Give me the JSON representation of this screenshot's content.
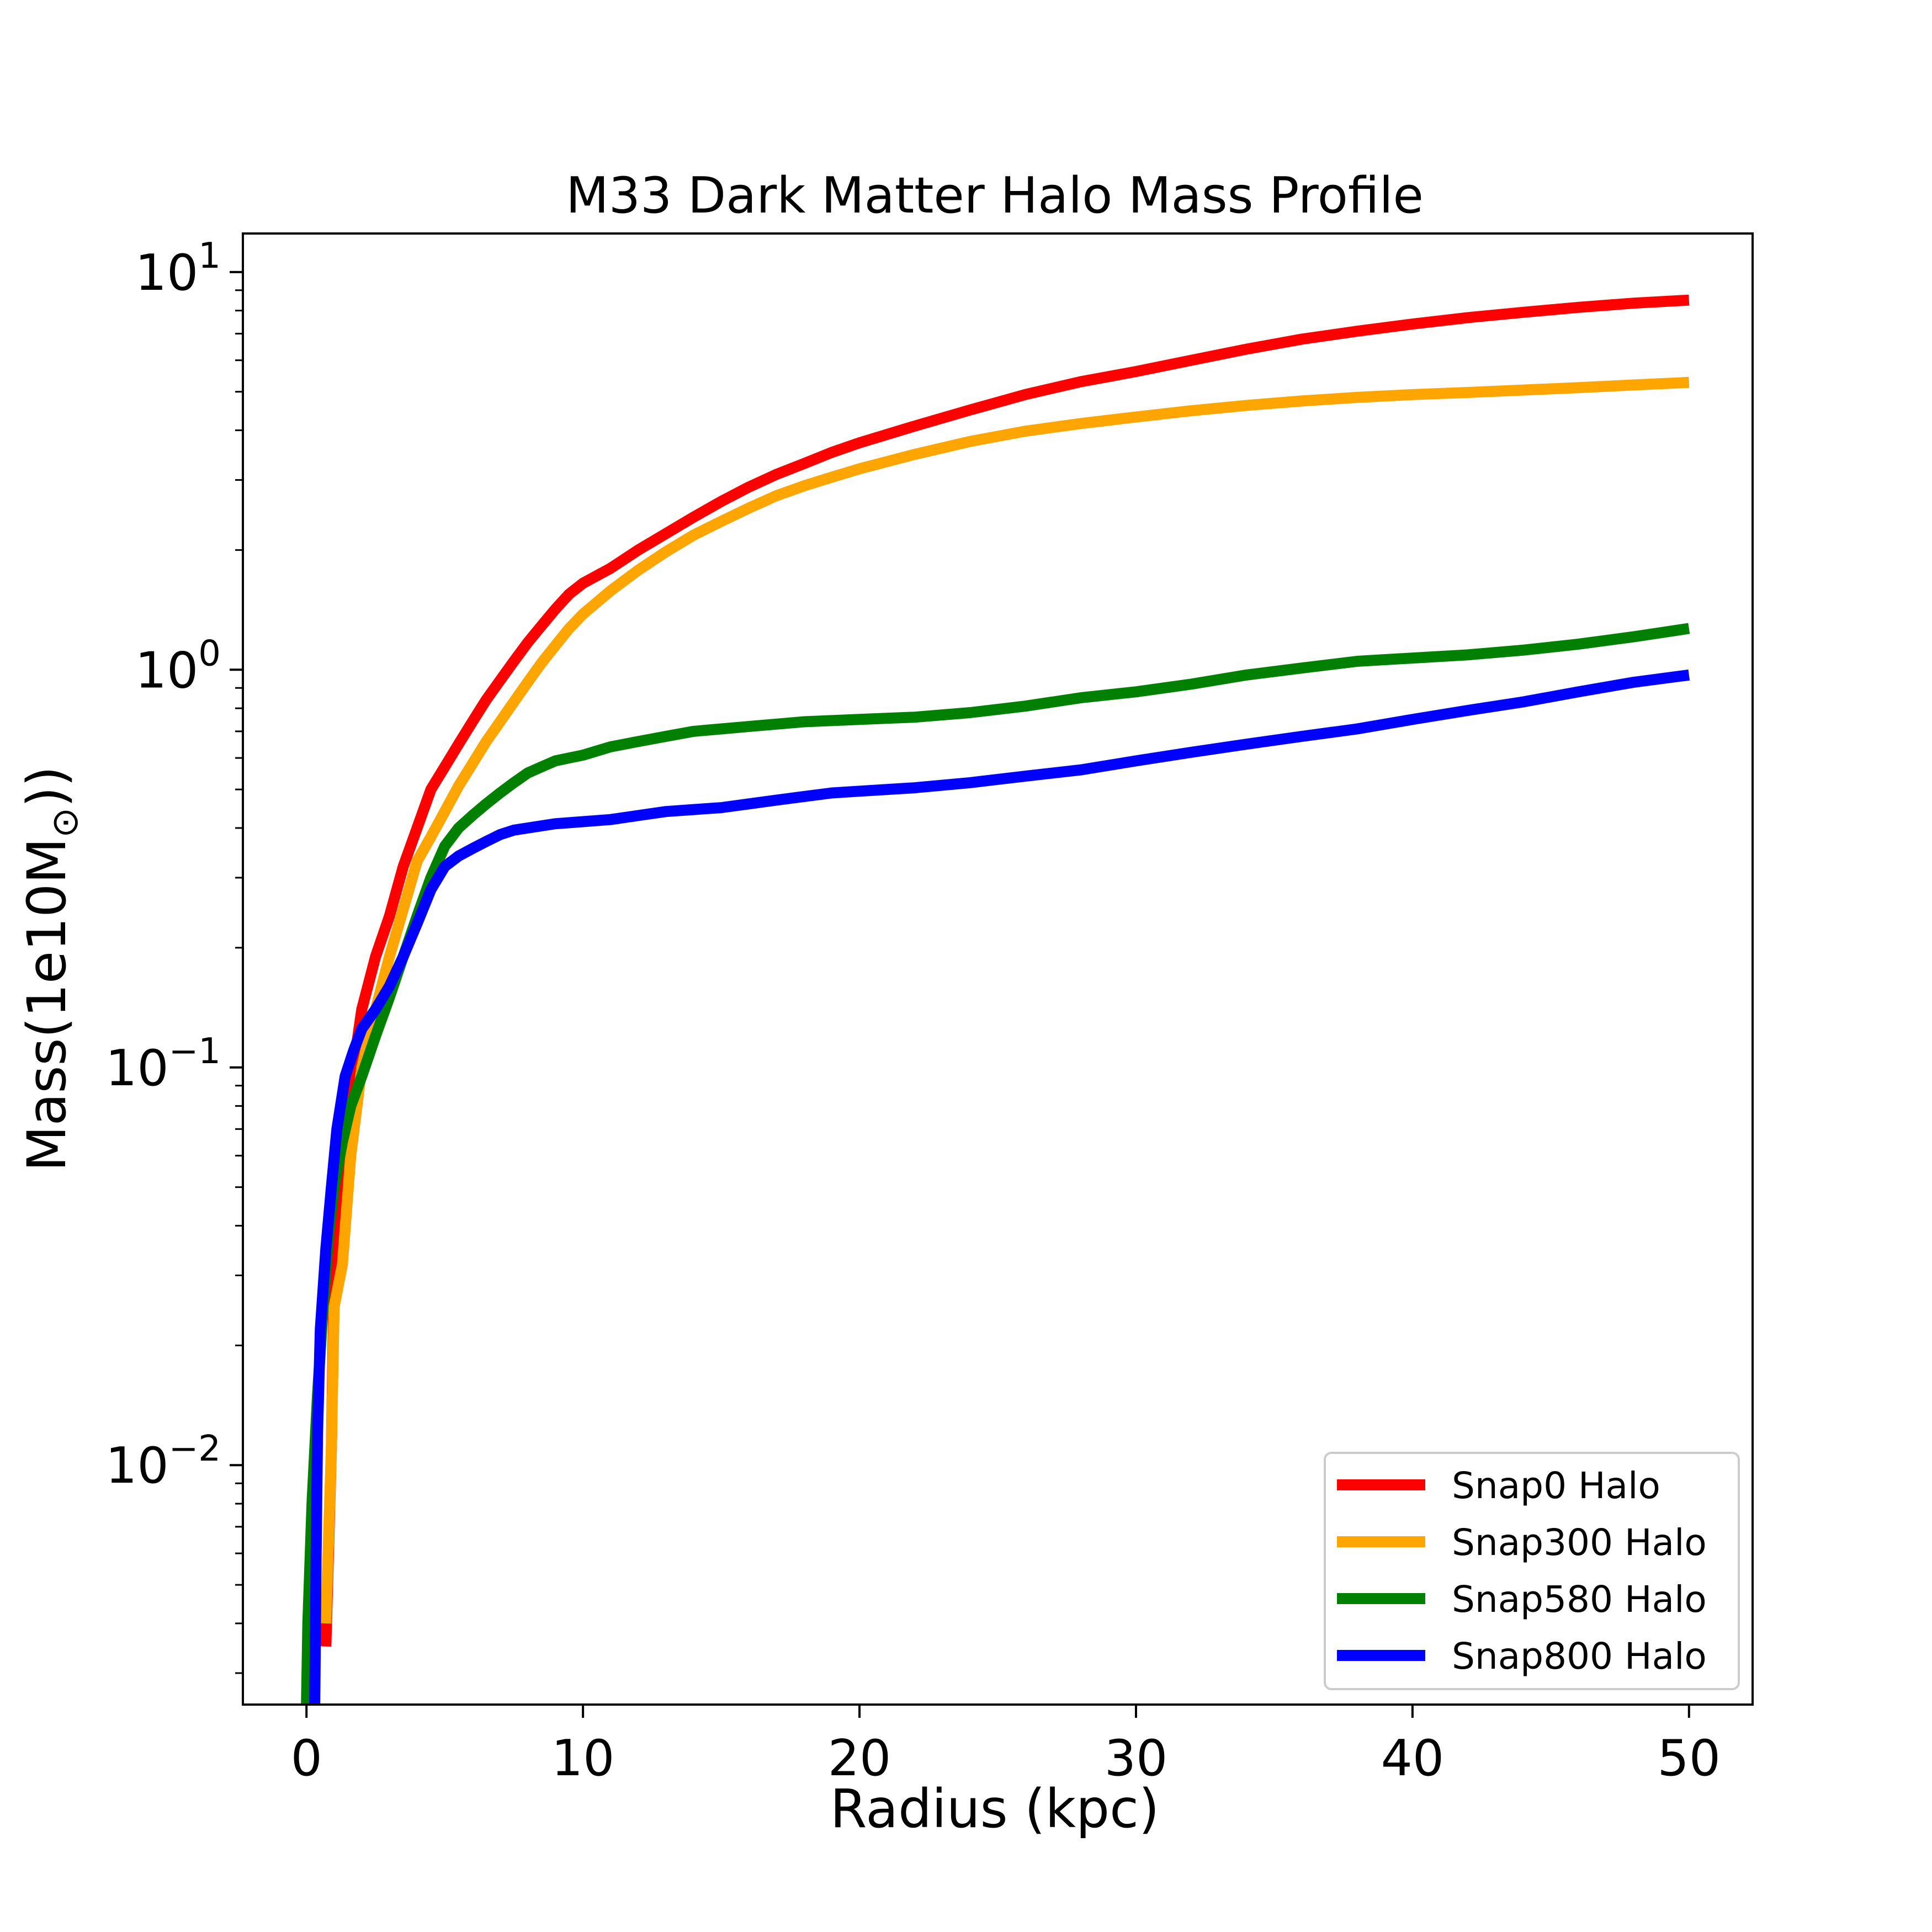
{
  "chart_data": {
    "type": "line",
    "title": "M33 Dark Matter Halo Mass Profile",
    "xlabel": "Radius (kpc)",
    "ylabel_prefix": "Mass(1e10M",
    "ylabel_sub": "⊙",
    "ylabel_suffix": "))",
    "x_scale": "linear",
    "y_scale": "log",
    "xlim": [
      -2.3,
      52.3
    ],
    "ylim": [
      0.0025,
      12.5
    ],
    "x_ticks": [
      0,
      10,
      20,
      30,
      40,
      50
    ],
    "y_ticks": [
      {
        "value": 10,
        "base": "10",
        "exp": "1"
      },
      {
        "value": 1,
        "base": "10",
        "exp": "0"
      },
      {
        "value": 0.1,
        "base": "10",
        "exp": "−1"
      },
      {
        "value": 0.01,
        "base": "10",
        "exp": "−2"
      }
    ],
    "grid": false,
    "legend_position": "lower right",
    "series": [
      {
        "name": "Snap0 Halo",
        "color": "#ff0000",
        "points": [
          [
            0.7,
            0.0035
          ],
          [
            0.9,
            0.011
          ],
          [
            1.0,
            0.03
          ],
          [
            1.3,
            0.05
          ],
          [
            1.6,
            0.09
          ],
          [
            2.0,
            0.14
          ],
          [
            2.5,
            0.19
          ],
          [
            3.0,
            0.24
          ],
          [
            3.5,
            0.32
          ],
          [
            4.0,
            0.4
          ],
          [
            4.5,
            0.5
          ],
          [
            5.0,
            0.57
          ],
          [
            5.5,
            0.65
          ],
          [
            6.0,
            0.74
          ],
          [
            6.5,
            0.84
          ],
          [
            7.0,
            0.94
          ],
          [
            7.5,
            1.05
          ],
          [
            8.0,
            1.17
          ],
          [
            8.5,
            1.29
          ],
          [
            9.0,
            1.42
          ],
          [
            9.5,
            1.55
          ],
          [
            10,
            1.65
          ],
          [
            11,
            1.8
          ],
          [
            12,
            2.0
          ],
          [
            13,
            2.2
          ],
          [
            14,
            2.42
          ],
          [
            15,
            2.65
          ],
          [
            16,
            2.88
          ],
          [
            17,
            3.1
          ],
          [
            18,
            3.3
          ],
          [
            19,
            3.52
          ],
          [
            20,
            3.72
          ],
          [
            22,
            4.1
          ],
          [
            24,
            4.5
          ],
          [
            26,
            4.92
          ],
          [
            28,
            5.3
          ],
          [
            30,
            5.62
          ],
          [
            32,
            6.0
          ],
          [
            34,
            6.4
          ],
          [
            36,
            6.78
          ],
          [
            38,
            7.1
          ],
          [
            40,
            7.4
          ],
          [
            42,
            7.68
          ],
          [
            44,
            7.92
          ],
          [
            46,
            8.15
          ],
          [
            48,
            8.35
          ],
          [
            50,
            8.5
          ]
        ]
      },
      {
        "name": "Snap300 Halo",
        "color": "#ffa500",
        "points": [
          [
            0.7,
            0.004
          ],
          [
            0.9,
            0.011
          ],
          [
            1.0,
            0.025
          ],
          [
            1.3,
            0.032
          ],
          [
            1.6,
            0.06
          ],
          [
            2.0,
            0.1
          ],
          [
            2.5,
            0.14
          ],
          [
            3.0,
            0.19
          ],
          [
            3.5,
            0.25
          ],
          [
            4.0,
            0.33
          ],
          [
            4.5,
            0.38
          ],
          [
            5.0,
            0.44
          ],
          [
            5.5,
            0.51
          ],
          [
            6.0,
            0.58
          ],
          [
            6.5,
            0.66
          ],
          [
            7.0,
            0.74
          ],
          [
            7.5,
            0.83
          ],
          [
            8.0,
            0.93
          ],
          [
            8.5,
            1.04
          ],
          [
            9.0,
            1.15
          ],
          [
            9.5,
            1.27
          ],
          [
            10,
            1.38
          ],
          [
            11,
            1.58
          ],
          [
            12,
            1.78
          ],
          [
            13,
            1.98
          ],
          [
            14,
            2.18
          ],
          [
            15,
            2.36
          ],
          [
            16,
            2.55
          ],
          [
            17,
            2.74
          ],
          [
            18,
            2.9
          ],
          [
            19,
            3.05
          ],
          [
            20,
            3.2
          ],
          [
            22,
            3.48
          ],
          [
            24,
            3.75
          ],
          [
            26,
            3.98
          ],
          [
            28,
            4.16
          ],
          [
            30,
            4.32
          ],
          [
            32,
            4.48
          ],
          [
            34,
            4.62
          ],
          [
            36,
            4.74
          ],
          [
            38,
            4.84
          ],
          [
            40,
            4.92
          ],
          [
            42,
            4.98
          ],
          [
            44,
            5.05
          ],
          [
            46,
            5.12
          ],
          [
            48,
            5.2
          ],
          [
            50,
            5.28
          ]
        ]
      },
      {
        "name": "Snap580 Halo",
        "color": "#008000",
        "points": [
          [
            0.0,
            0.0025
          ],
          [
            0.05,
            0.004
          ],
          [
            0.2,
            0.008
          ],
          [
            0.4,
            0.015
          ],
          [
            0.6,
            0.025
          ],
          [
            0.8,
            0.038
          ],
          [
            1.0,
            0.05
          ],
          [
            1.3,
            0.065
          ],
          [
            1.6,
            0.08
          ],
          [
            2.0,
            0.095
          ],
          [
            2.5,
            0.12
          ],
          [
            3.0,
            0.15
          ],
          [
            3.5,
            0.19
          ],
          [
            4.0,
            0.24
          ],
          [
            4.5,
            0.3
          ],
          [
            5.0,
            0.36
          ],
          [
            5.5,
            0.4
          ],
          [
            6.0,
            0.43
          ],
          [
            6.5,
            0.46
          ],
          [
            7.0,
            0.49
          ],
          [
            7.5,
            0.52
          ],
          [
            8.0,
            0.55
          ],
          [
            8.5,
            0.57
          ],
          [
            9.0,
            0.59
          ],
          [
            9.5,
            0.6
          ],
          [
            10,
            0.61
          ],
          [
            11,
            0.64
          ],
          [
            12,
            0.66
          ],
          [
            13,
            0.68
          ],
          [
            14,
            0.7
          ],
          [
            15,
            0.71
          ],
          [
            16,
            0.72
          ],
          [
            17,
            0.73
          ],
          [
            18,
            0.74
          ],
          [
            19,
            0.745
          ],
          [
            20,
            0.75
          ],
          [
            22,
            0.76
          ],
          [
            24,
            0.78
          ],
          [
            26,
            0.81
          ],
          [
            28,
            0.85
          ],
          [
            30,
            0.88
          ],
          [
            32,
            0.92
          ],
          [
            34,
            0.97
          ],
          [
            36,
            1.01
          ],
          [
            38,
            1.05
          ],
          [
            40,
            1.07
          ],
          [
            42,
            1.09
          ],
          [
            44,
            1.12
          ],
          [
            46,
            1.16
          ],
          [
            48,
            1.21
          ],
          [
            50,
            1.27
          ]
        ]
      },
      {
        "name": "Snap800 Halo",
        "color": "#0000ff",
        "points": [
          [
            0.3,
            0.0025
          ],
          [
            0.35,
            0.006
          ],
          [
            0.4,
            0.012
          ],
          [
            0.5,
            0.022
          ],
          [
            0.7,
            0.035
          ],
          [
            0.9,
            0.05
          ],
          [
            1.1,
            0.07
          ],
          [
            1.4,
            0.095
          ],
          [
            1.7,
            0.11
          ],
          [
            2.0,
            0.125
          ],
          [
            2.5,
            0.14
          ],
          [
            3.0,
            0.16
          ],
          [
            3.5,
            0.19
          ],
          [
            4.0,
            0.23
          ],
          [
            4.5,
            0.28
          ],
          [
            5.0,
            0.32
          ],
          [
            5.5,
            0.34
          ],
          [
            6.0,
            0.355
          ],
          [
            6.5,
            0.37
          ],
          [
            7.0,
            0.385
          ],
          [
            7.5,
            0.395
          ],
          [
            8.0,
            0.4
          ],
          [
            9.0,
            0.41
          ],
          [
            10,
            0.415
          ],
          [
            11,
            0.42
          ],
          [
            12,
            0.43
          ],
          [
            13,
            0.44
          ],
          [
            14,
            0.445
          ],
          [
            15,
            0.45
          ],
          [
            16,
            0.46
          ],
          [
            17,
            0.47
          ],
          [
            18,
            0.48
          ],
          [
            19,
            0.49
          ],
          [
            20,
            0.495
          ],
          [
            22,
            0.505
          ],
          [
            24,
            0.52
          ],
          [
            26,
            0.54
          ],
          [
            28,
            0.56
          ],
          [
            30,
            0.59
          ],
          [
            32,
            0.62
          ],
          [
            34,
            0.65
          ],
          [
            36,
            0.68
          ],
          [
            38,
            0.71
          ],
          [
            40,
            0.75
          ],
          [
            42,
            0.79
          ],
          [
            44,
            0.83
          ],
          [
            46,
            0.88
          ],
          [
            48,
            0.93
          ],
          [
            50,
            0.97
          ]
        ]
      }
    ]
  }
}
